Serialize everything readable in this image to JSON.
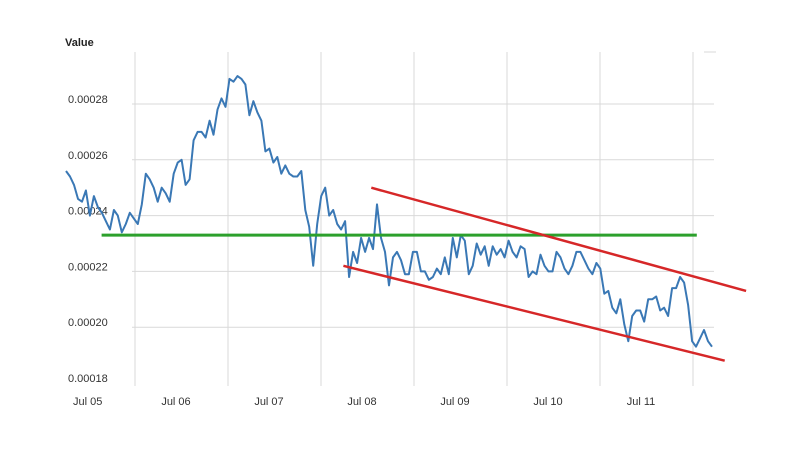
{
  "chart_data": {
    "type": "line",
    "title": "",
    "xlabel": "",
    "ylabel": "Value",
    "ylim": [
      0.00018,
      0.00029
    ],
    "yticks": [
      "0.00018",
      "0.00020",
      "0.00022",
      "0.00024",
      "0.00026",
      "0.00028"
    ],
    "xticks": [
      "Jul 05",
      "Jul 06",
      "Jul 07",
      "Jul 08",
      "Jul 09",
      "Jul 10",
      "Jul 11"
    ],
    "grid": true,
    "legend": "none",
    "series_color": "#3a78b5",
    "series": [
      {
        "values": [
          0.000256,
          0.000254,
          0.000251,
          0.000246,
          0.000245,
          0.000249,
          0.00024,
          0.000247,
          0.000243,
          0.000241,
          0.000238,
          0.000235,
          0.000242,
          0.00024,
          0.000234,
          0.000237,
          0.000241,
          0.000239,
          0.000237,
          0.000244,
          0.000255,
          0.000253,
          0.00025,
          0.000245,
          0.00025,
          0.000248,
          0.000245,
          0.000255,
          0.000259,
          0.00026,
          0.000251,
          0.000253,
          0.000267,
          0.00027,
          0.00027,
          0.000268,
          0.000274,
          0.000269,
          0.000278,
          0.000282,
          0.000279,
          0.000289,
          0.000288,
          0.00029,
          0.000289,
          0.000287,
          0.000276,
          0.000281,
          0.000277,
          0.000274,
          0.000263,
          0.000264,
          0.000259,
          0.000261,
          0.000255,
          0.000258,
          0.000255,
          0.000254,
          0.000254,
          0.000256,
          0.000242,
          0.000236,
          0.000222,
          0.000237,
          0.000247,
          0.00025,
          0.00024,
          0.000242,
          0.000237,
          0.000235,
          0.000238,
          0.000218,
          0.000227,
          0.000223,
          0.000232,
          0.000227,
          0.000232,
          0.000228,
          0.000244,
          0.000232,
          0.000227,
          0.000215,
          0.000225,
          0.000227,
          0.000224,
          0.000219,
          0.000219,
          0.000227,
          0.000227,
          0.00022,
          0.00022,
          0.000217,
          0.000218,
          0.000221,
          0.000219,
          0.000225,
          0.000219,
          0.000232,
          0.000225,
          0.000233,
          0.000231,
          0.000219,
          0.000222,
          0.00023,
          0.000226,
          0.000229,
          0.000222,
          0.000229,
          0.000226,
          0.000228,
          0.000225,
          0.000231,
          0.000227,
          0.000225,
          0.000229,
          0.000228,
          0.000218,
          0.00022,
          0.000219,
          0.000226,
          0.000222,
          0.00022,
          0.00022,
          0.000227,
          0.000225,
          0.000221,
          0.000219,
          0.000222,
          0.000227,
          0.000227,
          0.000224,
          0.000221,
          0.000219,
          0.000223,
          0.000221,
          0.000212,
          0.000213,
          0.000207,
          0.000205,
          0.00021,
          0.000201,
          0.000195,
          0.000204,
          0.000206,
          0.000206,
          0.000202,
          0.00021,
          0.00021,
          0.000211,
          0.000206,
          0.000207,
          0.000204,
          0.000214,
          0.000214,
          0.000218,
          0.000216,
          0.000208,
          0.000195,
          0.000193,
          0.000196,
          0.000199,
          0.000195,
          0.000193
        ]
      }
    ],
    "annotations": [
      {
        "type": "horizontal-line",
        "color": "#2ca02c",
        "y": 0.000233,
        "x_from": 0.2,
        "x_to": 6.6
      },
      {
        "type": "trend-line",
        "color": "#d62728",
        "points": [
          [
            2.8,
            0.000222
          ],
          [
            6.9,
            0.000188
          ]
        ]
      },
      {
        "type": "trend-line",
        "color": "#d62728",
        "points": [
          [
            3.1,
            0.00025
          ],
          [
            7.13,
            0.000213
          ]
        ]
      }
    ]
  }
}
